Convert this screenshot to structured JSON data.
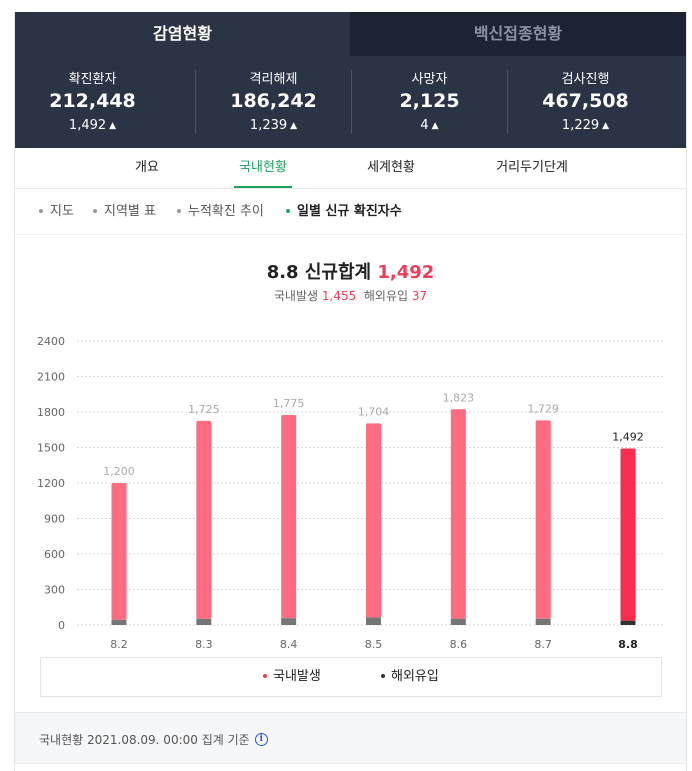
{
  "top_tabs": [
    {
      "label": "감염현황",
      "active": true
    },
    {
      "label": "백신접종현황",
      "active": false
    }
  ],
  "stats": [
    {
      "label": "확진환자",
      "value": "212,448",
      "delta": "1,492"
    },
    {
      "label": "격리해제",
      "value": "186,242",
      "delta": "1,239"
    },
    {
      "label": "사망자",
      "value": "2,125",
      "delta": "4"
    },
    {
      "label": "검사진행",
      "value": "467,508",
      "delta": "1,229"
    }
  ],
  "sub_tabs": [
    {
      "label": "개요",
      "active": false
    },
    {
      "label": "국내현황",
      "active": true
    },
    {
      "label": "세계현황",
      "active": false
    },
    {
      "label": "거리두기단계",
      "active": false
    }
  ],
  "filters": [
    {
      "label": "지도",
      "active": false
    },
    {
      "label": "지역별 표",
      "active": false
    },
    {
      "label": "누적확진 추이",
      "active": false
    },
    {
      "label": "일별 신규 확진자수",
      "active": true
    }
  ],
  "chart_header": {
    "title_prefix": "8.8 신규합계",
    "total": "1,492",
    "domestic_label": "국내발생",
    "domestic_value": "1,455",
    "overseas_label": "해외유입",
    "overseas_value": "37"
  },
  "chart_data": {
    "type": "bar",
    "stacked": true,
    "categories": [
      "8.2",
      "8.3",
      "8.4",
      "8.5",
      "8.6",
      "8.7",
      "8.8"
    ],
    "totals": [
      1200,
      1725,
      1775,
      1704,
      1823,
      1729,
      1492
    ],
    "total_labels": [
      "1,200",
      "1,725",
      "1,775",
      "1,704",
      "1,823",
      "1,729",
      "1,492"
    ],
    "series": [
      {
        "name": "국내발생",
        "values": [
          1155,
          1672,
          1717,
          1641,
          1769,
          1676,
          1455
        ]
      },
      {
        "name": "해외유입",
        "values": [
          45,
          53,
          58,
          63,
          54,
          53,
          37
        ]
      }
    ],
    "yticks": [
      0,
      300,
      600,
      900,
      1200,
      1500,
      1800,
      2100,
      2400
    ],
    "ylim": [
      0,
      2400
    ],
    "highlight_index": 6,
    "colors": {
      "domestic": "#ff6b81",
      "domestic_highlight": "#fa2d4f",
      "overseas": "#767676",
      "overseas_highlight": "#333333",
      "label_muted": "#aaaaaa",
      "label_highlight": "#222222"
    }
  },
  "legend": [
    {
      "label": "국내발생",
      "color": "#f03c5a"
    },
    {
      "label": "해외유입",
      "color": "#333333"
    }
  ],
  "footer": {
    "text": "국내현황 2021.08.09. 00:00 집계 기준",
    "icon": "info-icon"
  }
}
